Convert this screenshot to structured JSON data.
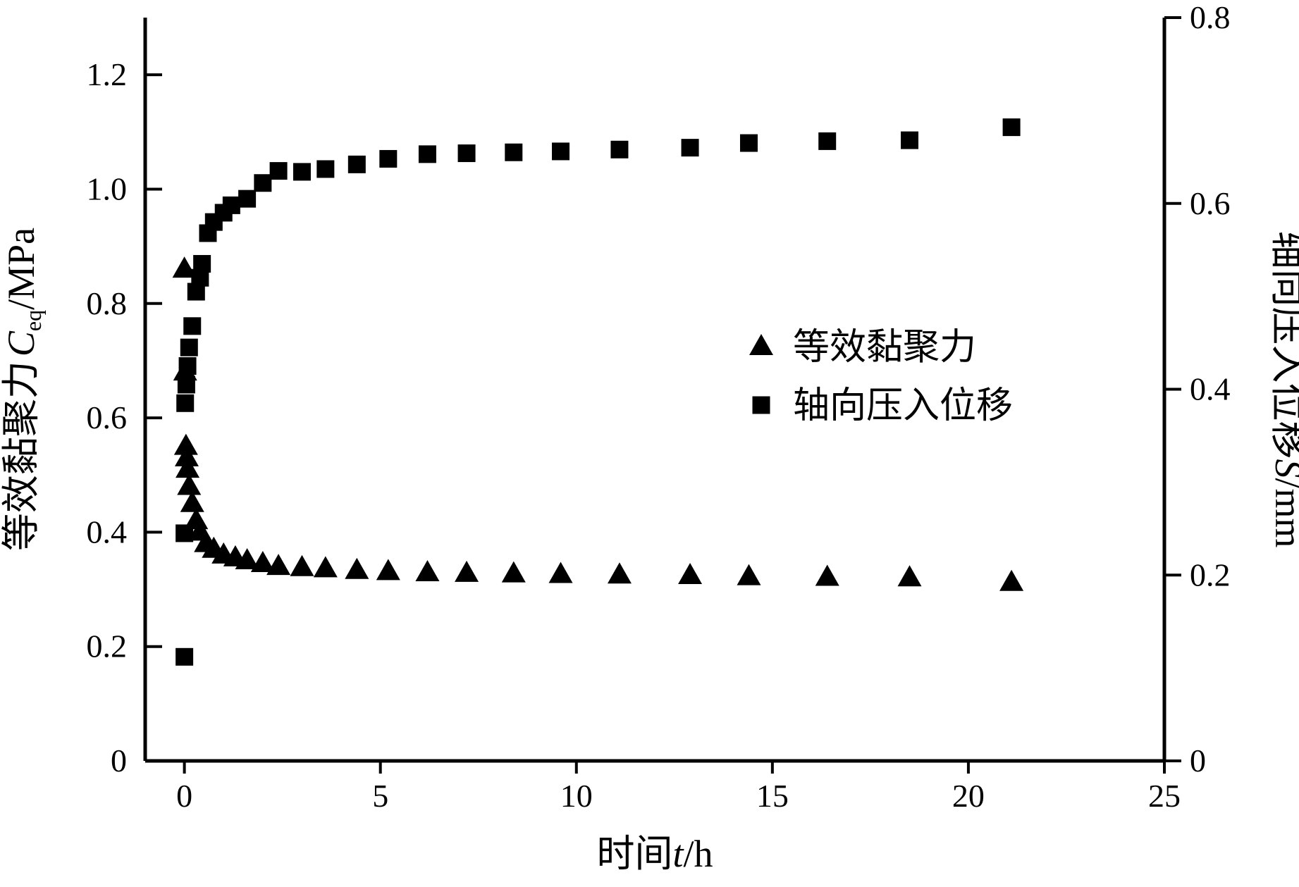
{
  "chart_data": {
    "type": "scatter",
    "x_axis": {
      "range": [
        -1,
        25
      ],
      "ticks": [
        0,
        5,
        10,
        15,
        20,
        25
      ],
      "label_prefix": "时间",
      "label_var": "t",
      "label_unit": "/h"
    },
    "y_axis_left": {
      "range": [
        0,
        1.3
      ],
      "ticks": [
        0,
        0.2,
        0.4,
        0.6,
        0.8,
        1.0,
        1.2
      ],
      "tick_labels": [
        "0",
        "0.2",
        "0.4",
        "0.6",
        "0.8",
        "1.0",
        "1.2"
      ],
      "label_prefix": "等效黏聚力",
      "label_var": "C",
      "label_sub": "eq",
      "label_unit": "/MPa"
    },
    "y_axis_right": {
      "range": [
        0,
        0.8
      ],
      "ticks": [
        0,
        0.2,
        0.4,
        0.6,
        0.8
      ],
      "tick_labels": [
        "0",
        "0.2",
        "0.4",
        "0.6",
        "0.8"
      ],
      "label_prefix": "轴向压入位移",
      "label_var": "S",
      "label_unit": "/mm"
    },
    "legend": {
      "position": "center-right"
    },
    "grid": false,
    "series": [
      {
        "name": "等效黏聚力",
        "axis": "left",
        "marker": "triangle",
        "color": "#000000",
        "points": [
          [
            0.0,
            0.86
          ],
          [
            0.02,
            0.68
          ],
          [
            0.04,
            0.55
          ],
          [
            0.06,
            0.53
          ],
          [
            0.08,
            0.51
          ],
          [
            0.12,
            0.48
          ],
          [
            0.2,
            0.45
          ],
          [
            0.3,
            0.42
          ],
          [
            0.4,
            0.4
          ],
          [
            0.55,
            0.38
          ],
          [
            0.75,
            0.37
          ],
          [
            1.0,
            0.36
          ],
          [
            1.3,
            0.355
          ],
          [
            1.6,
            0.35
          ],
          [
            2.0,
            0.345
          ],
          [
            2.4,
            0.34
          ],
          [
            3.0,
            0.338
          ],
          [
            3.6,
            0.336
          ],
          [
            4.4,
            0.333
          ],
          [
            5.2,
            0.331
          ],
          [
            6.2,
            0.329
          ],
          [
            7.2,
            0.328
          ],
          [
            8.4,
            0.327
          ],
          [
            9.6,
            0.326
          ],
          [
            11.1,
            0.325
          ],
          [
            12.9,
            0.324
          ],
          [
            14.4,
            0.322
          ],
          [
            16.4,
            0.321
          ],
          [
            18.5,
            0.32
          ],
          [
            21.1,
            0.312
          ]
        ]
      },
      {
        "name": "轴向压入位移",
        "axis": "right",
        "marker": "square",
        "color": "#000000",
        "points": [
          [
            0.0,
            0.112
          ],
          [
            0.0,
            0.245
          ],
          [
            0.02,
            0.385
          ],
          [
            0.05,
            0.405
          ],
          [
            0.08,
            0.425
          ],
          [
            0.12,
            0.445
          ],
          [
            0.2,
            0.468
          ],
          [
            0.3,
            0.505
          ],
          [
            0.4,
            0.52
          ],
          [
            0.45,
            0.535
          ],
          [
            0.6,
            0.568
          ],
          [
            0.75,
            0.58
          ],
          [
            1.0,
            0.59
          ],
          [
            1.2,
            0.598
          ],
          [
            1.6,
            0.605
          ],
          [
            2.0,
            0.622
          ],
          [
            2.4,
            0.635
          ],
          [
            3.0,
            0.634
          ],
          [
            3.6,
            0.637
          ],
          [
            4.4,
            0.642
          ],
          [
            5.2,
            0.648
          ],
          [
            6.2,
            0.653
          ],
          [
            7.2,
            0.654
          ],
          [
            8.4,
            0.655
          ],
          [
            9.6,
            0.656
          ],
          [
            11.1,
            0.658
          ],
          [
            12.9,
            0.66
          ],
          [
            14.4,
            0.665
          ],
          [
            16.4,
            0.667
          ],
          [
            18.5,
            0.668
          ],
          [
            21.1,
            0.682
          ]
        ]
      }
    ]
  }
}
